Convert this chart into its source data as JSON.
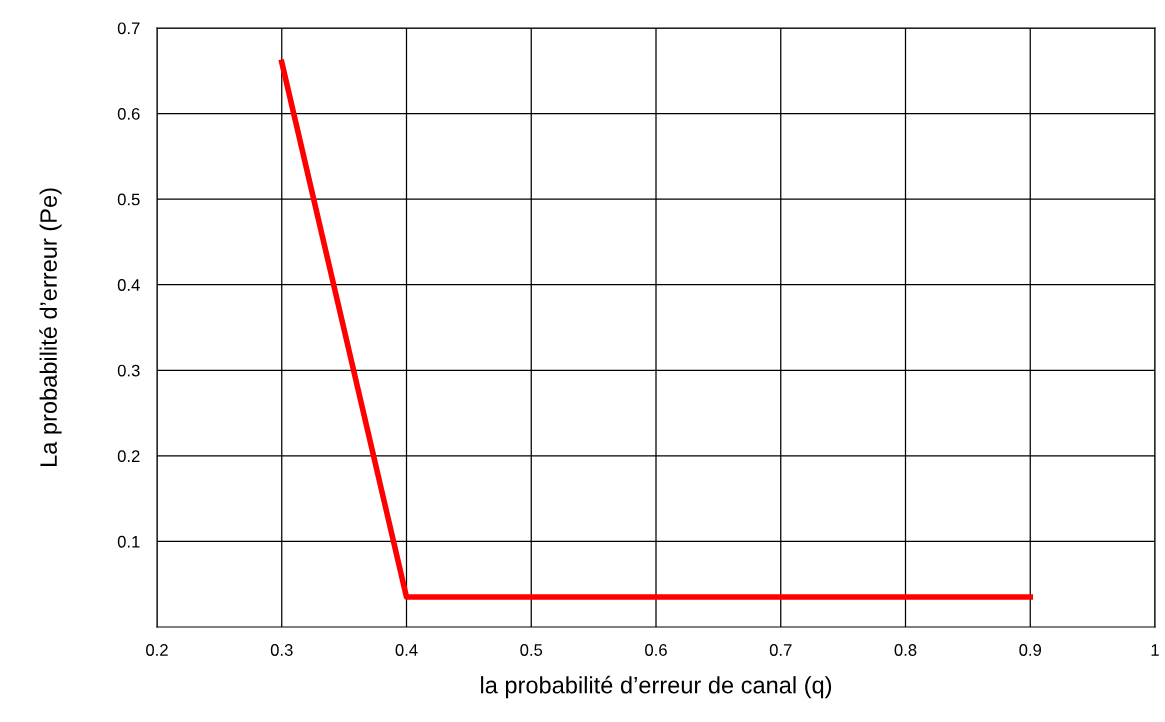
{
  "chart_data": {
    "type": "line",
    "xlabel": "la probabilité d’erreur de canal (q)",
    "ylabel": "La probabilité d’erreur (Pe)",
    "x": [
      0.3,
      0.4,
      0.9
    ],
    "series": [
      {
        "color": "#ff0000",
        "values": [
          0.66,
          0.035,
          0.035
        ]
      }
    ],
    "xlim": [
      0.2,
      1
    ],
    "ylim": [
      0,
      0.7
    ],
    "xticks": [
      0.2,
      0.3,
      0.4,
      0.5,
      0.6,
      0.7,
      0.8,
      0.9,
      1
    ],
    "yticks": [
      0.1,
      0.2,
      0.3,
      0.4,
      0.5,
      0.6,
      0.7
    ],
    "grid": true,
    "legend": false,
    "marker": "none",
    "line_style": "solid"
  }
}
